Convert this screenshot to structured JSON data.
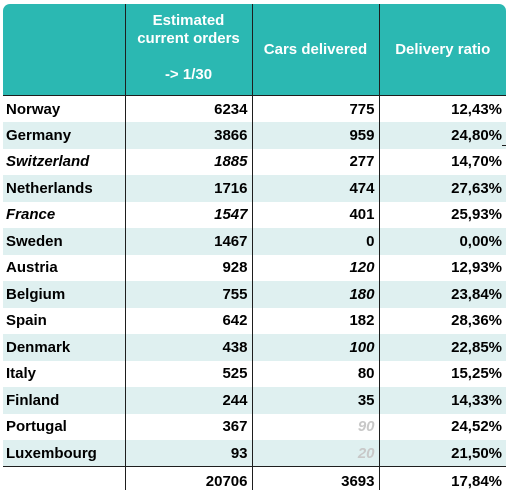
{
  "header": {
    "col1_line1": "Estimated",
    "col1_line2": "current orders",
    "col1_line3": "-> 1/30",
    "col2": "Cars delivered",
    "col3": "Delivery ratio"
  },
  "rows": [
    {
      "country": "Norway",
      "orders": "6234",
      "delivered": "775",
      "ratio": "12,43%",
      "country_style": "normal",
      "orders_style": "normal",
      "delivered_style": "normal"
    },
    {
      "country": "Germany",
      "orders": "3866",
      "delivered": "959",
      "ratio": "24,80%",
      "country_style": "normal",
      "orders_style": "normal",
      "delivered_style": "normal"
    },
    {
      "country": "Switzerland",
      "orders": "1885",
      "delivered": "277",
      "ratio": "14,70%",
      "country_style": "italic",
      "orders_style": "italic",
      "delivered_style": "normal"
    },
    {
      "country": "Netherlands",
      "orders": "1716",
      "delivered": "474",
      "ratio": "27,63%",
      "country_style": "normal",
      "orders_style": "normal",
      "delivered_style": "normal"
    },
    {
      "country": "France",
      "orders": "1547",
      "delivered": "401",
      "ratio": "25,93%",
      "country_style": "italic",
      "orders_style": "italic",
      "delivered_style": "normal"
    },
    {
      "country": "Sweden",
      "orders": "1467",
      "delivered": "0",
      "ratio": "0,00%",
      "country_style": "normal",
      "orders_style": "normal",
      "delivered_style": "normal"
    },
    {
      "country": "Austria",
      "orders": "928",
      "delivered": "120",
      "ratio": "12,93%",
      "country_style": "normal",
      "orders_style": "normal",
      "delivered_style": "italic"
    },
    {
      "country": "Belgium",
      "orders": "755",
      "delivered": "180",
      "ratio": "23,84%",
      "country_style": "normal",
      "orders_style": "normal",
      "delivered_style": "italic"
    },
    {
      "country": "Spain",
      "orders": "642",
      "delivered": "182",
      "ratio": "28,36%",
      "country_style": "normal",
      "orders_style": "normal",
      "delivered_style": "normal"
    },
    {
      "country": "Denmark",
      "orders": "438",
      "delivered": "100",
      "ratio": "22,85%",
      "country_style": "normal",
      "orders_style": "normal",
      "delivered_style": "italic"
    },
    {
      "country": "Italy",
      "orders": "525",
      "delivered": "80",
      "ratio": "15,25%",
      "country_style": "normal",
      "orders_style": "normal",
      "delivered_style": "normal"
    },
    {
      "country": "Finland",
      "orders": "244",
      "delivered": "35",
      "ratio": "14,33%",
      "country_style": "normal",
      "orders_style": "normal",
      "delivered_style": "normal"
    },
    {
      "country": "Portugal",
      "orders": "367",
      "delivered": "90",
      "ratio": "24,52%",
      "country_style": "normal",
      "orders_style": "normal",
      "delivered_style": "faint"
    },
    {
      "country": "Luxembourg",
      "orders": "93",
      "delivered": "20",
      "ratio": "21,50%",
      "country_style": "normal",
      "orders_style": "normal",
      "delivered_style": "faint"
    }
  ],
  "totals": {
    "country": "",
    "orders": "20706",
    "delivered": "3693",
    "ratio": "17,84%"
  },
  "colors": {
    "header_bg": "#2bb8b2",
    "header_text": "#ffffff",
    "stripe": "#dff0f0",
    "faint_text": "#c8c8c8"
  }
}
